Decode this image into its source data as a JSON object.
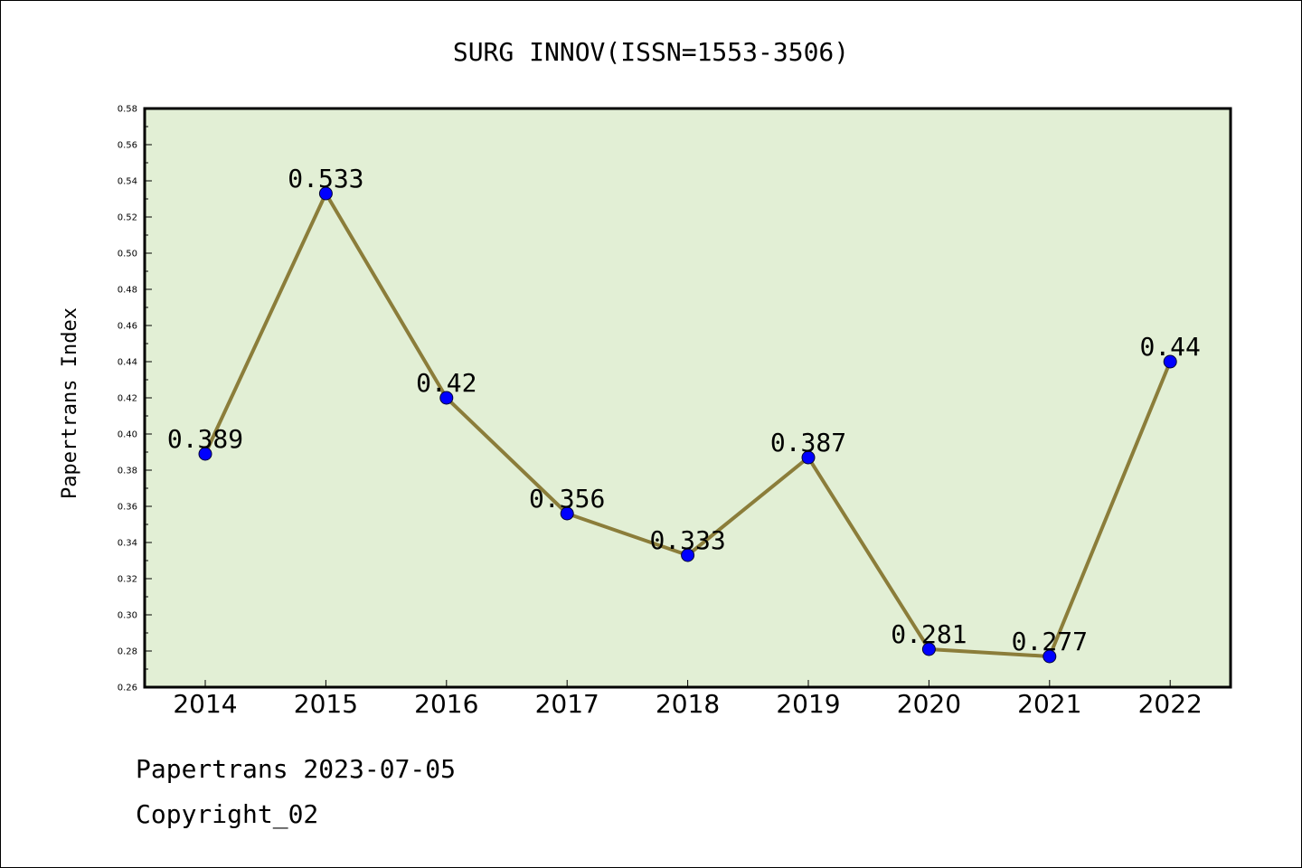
{
  "chart_data": {
    "type": "line",
    "title": "SURG INNOV(ISSN=1553-3506)",
    "xlabel": "",
    "ylabel": "Papertrans Index",
    "categories": [
      "2014",
      "2015",
      "2016",
      "2017",
      "2018",
      "2019",
      "2020",
      "2021",
      "2022"
    ],
    "series": [
      {
        "values": [
          0.389,
          0.533,
          0.42,
          0.356,
          0.333,
          0.387,
          0.281,
          0.277,
          0.44
        ],
        "data_labels": [
          "0.389",
          "0.533",
          "0.42",
          "0.356",
          "0.333",
          "0.387",
          "0.281",
          "0.277",
          "0.44"
        ]
      }
    ],
    "ylim": [
      0.26,
      0.58
    ],
    "yticks": [
      "0.26",
      "0.28",
      "0.30",
      "0.32",
      "0.34",
      "0.36",
      "0.38",
      "0.40",
      "0.42",
      "0.44",
      "0.46",
      "0.48",
      "0.50",
      "0.52",
      "0.54",
      "0.56",
      "0.58"
    ],
    "grid": false,
    "colors": {
      "plot_background": "#e2efd5",
      "line": "#8b7d3a",
      "marker": "#0000ff"
    }
  },
  "footer": {
    "line1": "Papertrans 2023-07-05",
    "line2": "Copyright_02"
  }
}
